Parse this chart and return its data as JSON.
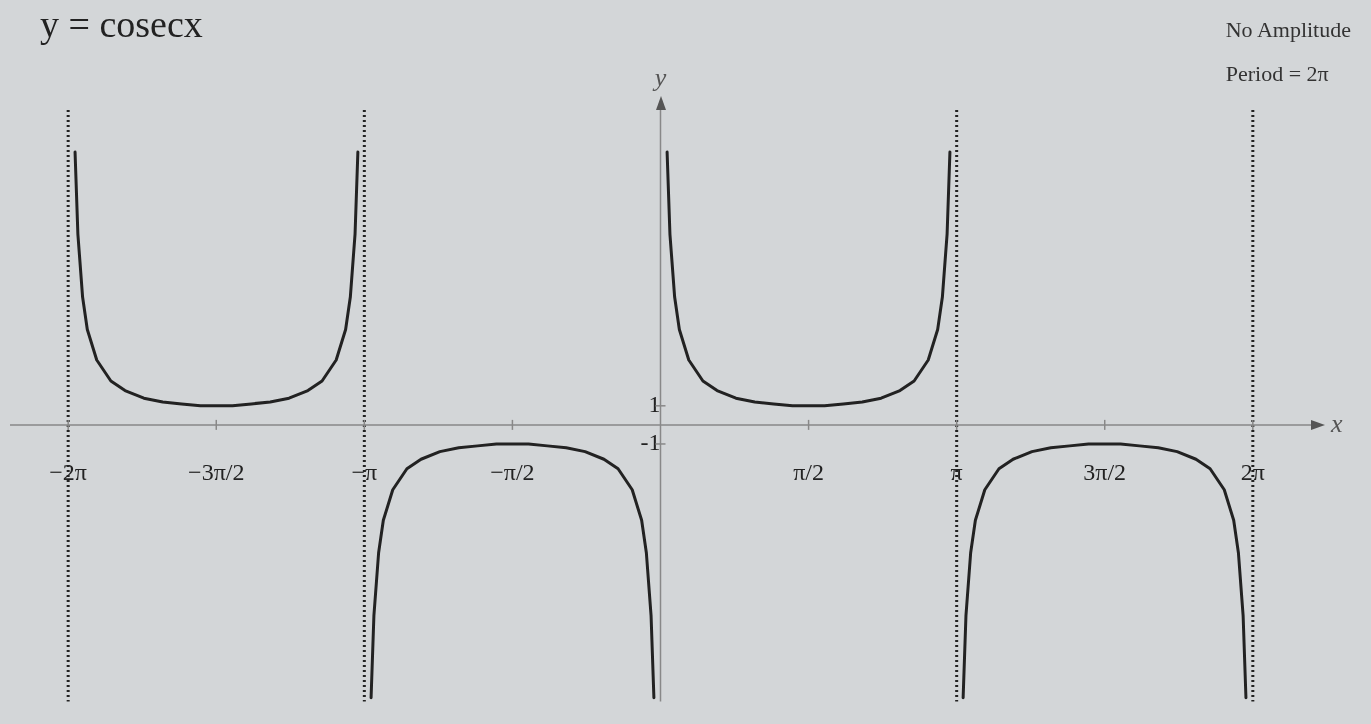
{
  "chart_data": {
    "type": "line",
    "title": "y = cosecx",
    "xlabel": "x",
    "ylabel": "y",
    "annotations": [
      "No Amplitude",
      "Period = 2π"
    ],
    "x": [
      -6.21,
      -6.18,
      -6.13,
      -6.08,
      -5.98,
      -5.83,
      -5.68,
      -5.48,
      -5.28,
      -5.08,
      -4.88,
      -4.71,
      -4.54,
      -4.34,
      -4.14,
      -3.94,
      -3.74,
      -3.59,
      -3.44,
      -3.34,
      -3.29,
      -3.24,
      -3.21,
      -3.14,
      -3.07,
      -3.04,
      -2.99,
      -2.94,
      -2.84,
      -2.69,
      -2.54,
      -2.34,
      -2.14,
      -1.94,
      -1.74,
      -1.57,
      -1.4,
      -1.2,
      -1.0,
      -0.8,
      -0.6,
      -0.45,
      -0.3,
      -0.2,
      -0.15,
      -0.1,
      -0.07,
      0,
      0.07,
      0.1,
      0.15,
      0.2,
      0.3,
      0.45,
      0.6,
      0.8,
      1.0,
      1.2,
      1.4,
      1.57,
      1.74,
      1.94,
      2.14,
      2.34,
      2.54,
      2.69,
      2.84,
      2.94,
      2.99,
      3.04,
      3.07,
      3.14,
      3.21,
      3.24,
      3.29,
      3.34,
      3.44,
      3.59,
      3.74,
      3.94,
      4.14,
      4.34,
      4.54,
      4.71,
      4.88,
      5.08,
      5.28,
      5.48,
      5.68,
      5.83,
      5.98,
      6.08,
      6.13,
      6.18,
      6.21
    ],
    "series": [
      {
        "color": "#222222",
        "values": [
          14.3,
          10,
          6.7,
          5,
          3.4,
          2.3,
          1.8,
          1.4,
          1.2,
          1.1,
          1,
          1,
          1,
          1.1,
          1.2,
          1.4,
          1.8,
          2.3,
          3.4,
          5,
          6.7,
          10,
          14.3,
          null,
          -14.3,
          -10,
          -6.7,
          -5,
          -3.4,
          -2.3,
          -1.8,
          -1.4,
          -1.2,
          -1.1,
          -1,
          -1,
          -1,
          -1.1,
          -1.2,
          -1.4,
          -1.8,
          -2.3,
          -3.4,
          -5,
          -6.7,
          -10,
          -14.3,
          null,
          14.3,
          10,
          6.7,
          5,
          3.4,
          2.3,
          1.8,
          1.4,
          1.2,
          1.1,
          1,
          1,
          1,
          1.1,
          1.2,
          1.4,
          1.8,
          2.3,
          3.4,
          5,
          6.7,
          10,
          14.3,
          null,
          -14.3,
          -10,
          -6.7,
          -5,
          -3.4,
          -2.3,
          -1.8,
          -1.4,
          -1.2,
          -1.1,
          -1,
          -1,
          -1,
          -1.1,
          -1.2,
          -1.4,
          -1.8,
          -2.3,
          -3.4,
          -5,
          -6.7,
          -10,
          -14.3
        ]
      }
    ],
    "xlim": [
      -6.9,
      6.9
    ],
    "ylim": [
      -14.5,
      16.5
    ],
    "xticks": [
      {
        "value": -6.283,
        "label": "−2π"
      },
      {
        "value": -4.712,
        "label": "−3π/2"
      },
      {
        "value": -3.1416,
        "label": "−π"
      },
      {
        "value": -1.5708,
        "label": "−π/2"
      },
      {
        "value": 1.5708,
        "label": "π/2"
      },
      {
        "value": 3.1416,
        "label": "π"
      },
      {
        "value": 4.712,
        "label": "3π/2"
      },
      {
        "value": 6.283,
        "label": "2π"
      }
    ],
    "yticks": [
      -1,
      1
    ],
    "ref_lines": [
      {
        "axis": "x",
        "value": -6.283,
        "line_style": "dotted",
        "color": "#222222"
      },
      {
        "axis": "x",
        "value": -3.1416,
        "line_style": "dotted",
        "color": "#222222"
      },
      {
        "axis": "x",
        "value": 3.1416,
        "line_style": "dotted",
        "color": "#222222"
      },
      {
        "axis": "x",
        "value": 6.283,
        "line_style": "dotted",
        "color": "#222222"
      }
    ],
    "legend": false,
    "grid": false,
    "marker": "none",
    "line_style": "solid"
  }
}
